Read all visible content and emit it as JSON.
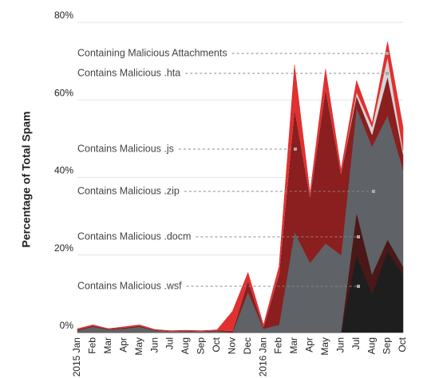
{
  "chart_data": {
    "type": "stacked_area",
    "ylabel": "Percentage of Total Spam",
    "categories": [
      "2015 Jan",
      "Feb",
      "Mar",
      "Apr",
      "May",
      "Jun",
      "Jul",
      "Aug",
      "Sep",
      "Oct",
      "Nov",
      "Dec",
      "2016 Jan",
      "Feb",
      "Mar",
      "Apr",
      "May",
      "Jun",
      "Jul",
      "Aug",
      "Sep",
      "Oct"
    ],
    "series": [
      {
        "name": "Contains Malicious .wsf",
        "color": "#1e1e1e",
        "values": [
          0,
          0,
          0,
          0,
          0,
          0,
          0,
          0,
          0,
          0,
          0,
          0,
          0,
          0,
          0,
          0,
          0,
          0,
          20,
          10,
          21,
          15
        ]
      },
      {
        "name": "Contains Malicious .docm",
        "color": "#4a1818",
        "values": [
          0,
          0,
          0,
          0,
          0,
          0,
          0,
          0,
          0,
          0,
          0,
          0,
          0,
          0,
          0,
          0,
          0,
          0,
          11,
          5,
          3,
          2
        ]
      },
      {
        "name": "Contains Malicious .zip",
        "color": "#5f6266",
        "values": [
          0.5,
          1.5,
          0.8,
          1,
          1.5,
          0.5,
          0.3,
          0.4,
          0.3,
          0.4,
          0,
          10.5,
          1,
          2,
          26,
          18,
          23,
          20,
          27,
          33,
          32,
          25
        ]
      },
      {
        "name": "Contains Malicious .js",
        "color": "#8b1e1e",
        "values": [
          0.3,
          0.3,
          0.2,
          0.3,
          0.3,
          0.2,
          0.1,
          0.1,
          0.1,
          0.2,
          0.5,
          3,
          0.5,
          13,
          32,
          17,
          40,
          21,
          3,
          3,
          10,
          4
        ]
      },
      {
        "name": "Contains Malicious .hta",
        "color": "#d4d4d4",
        "values": [
          0,
          0,
          0,
          0,
          0,
          0,
          0,
          0,
          0,
          0,
          0,
          0,
          0,
          0,
          0,
          0,
          0,
          0,
          1,
          2,
          5,
          1
        ]
      },
      {
        "name": "Containing Malicious Attachments",
        "color": "#e03030",
        "values": [
          0.2,
          0.2,
          0,
          0.2,
          0.2,
          0.1,
          0.1,
          0.1,
          0.1,
          0.1,
          5,
          2,
          0.5,
          2,
          11,
          1,
          5,
          1,
          3,
          1,
          4,
          6
        ]
      }
    ],
    "ylim": [
      0,
      80
    ],
    "yticks": [
      {
        "value": 0,
        "label": "0%"
      },
      {
        "value": 20,
        "label": "20%"
      },
      {
        "value": 40,
        "label": "40%"
      },
      {
        "value": 60,
        "label": "60%"
      },
      {
        "value": 80,
        "label": "80%"
      }
    ],
    "grid": true
  }
}
